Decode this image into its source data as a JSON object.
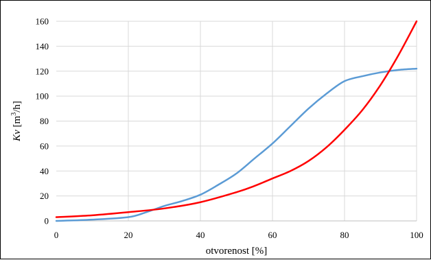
{
  "chart_data": {
    "type": "line",
    "title": "",
    "xlabel": "otvorenost [%]",
    "ylabel": {
      "italic": "Kv",
      "rest": " [m",
      "sup": "3",
      "tail": "/h]"
    },
    "xlim": [
      0,
      100
    ],
    "ylim": [
      0,
      160
    ],
    "x_ticks": [
      0,
      20,
      40,
      60,
      80,
      100
    ],
    "y_ticks": [
      0,
      20,
      40,
      60,
      80,
      100,
      120,
      140,
      160
    ],
    "grid": true,
    "legend": "none",
    "series": [
      {
        "color": "#5b9bd5",
        "x": [
          0,
          10,
          20,
          25,
          30,
          35,
          40,
          45,
          50,
          55,
          60,
          65,
          70,
          75,
          80,
          85,
          90,
          95,
          100
        ],
        "y": [
          0,
          1,
          3,
          7,
          12,
          16,
          21,
          29,
          38,
          50,
          62,
          76,
          90,
          102,
          112,
          116,
          119,
          121,
          122
        ]
      },
      {
        "color": "#ff0000",
        "x": [
          0,
          10,
          20,
          30,
          40,
          50,
          55,
          60,
          65,
          70,
          75,
          80,
          85,
          90,
          95,
          100
        ],
        "y": [
          3,
          4.5,
          7,
          10,
          15,
          23,
          28,
          34,
          40,
          48,
          59,
          73,
          89,
          109,
          133,
          160
        ]
      }
    ]
  }
}
